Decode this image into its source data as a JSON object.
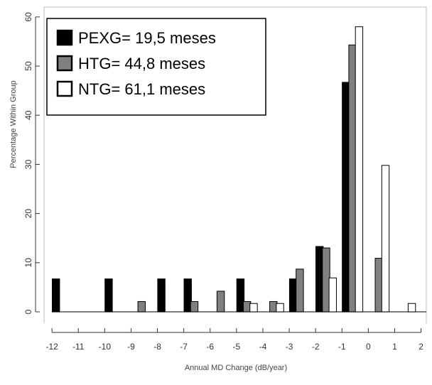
{
  "chart_data": {
    "type": "bar",
    "title": "",
    "xlabel": "Annual MD Change (dB/year)",
    "ylabel": "Percentage Within Group",
    "xlim": [
      -12.3,
      2.2
    ],
    "ylim": [
      0,
      62
    ],
    "x_ticks": [
      "-12",
      "-11",
      "-10",
      "-9",
      "-8",
      "-7",
      "-6",
      "-5",
      "-4",
      "-3",
      "-2",
      "-1",
      "0",
      "1",
      "2"
    ],
    "y_ticks": [
      "0",
      "10",
      "20",
      "30",
      "40",
      "50",
      "60"
    ],
    "grid": false,
    "legend_position": "top-left",
    "series": [
      {
        "name": "PEXG= 19,5 meses",
        "color": "#000000",
        "x": [
          -11.85,
          -9.85,
          -7.85,
          -6.85,
          -4.85,
          -2.85,
          -1.85,
          -0.85
        ],
        "values": [
          6.7,
          6.7,
          6.7,
          6.7,
          6.7,
          6.7,
          13.3,
          46.7
        ]
      },
      {
        "name": "HTG= 44,8 meses",
        "color": "#808080",
        "x": [
          -8.6,
          -6.6,
          -5.6,
          -4.6,
          -3.6,
          -2.6,
          -1.6,
          -0.6,
          0.4
        ],
        "values": [
          2.1,
          2.1,
          4.2,
          2.1,
          2.1,
          8.7,
          13.0,
          54.3,
          10.9
        ]
      },
      {
        "name": "NTG= 61,1 meses",
        "color": "#ffffff",
        "x": [
          -4.35,
          -3.35,
          -1.35,
          -0.35,
          0.65,
          1.65
        ],
        "values": [
          1.7,
          1.7,
          6.9,
          58.0,
          29.8,
          1.7
        ]
      }
    ]
  }
}
